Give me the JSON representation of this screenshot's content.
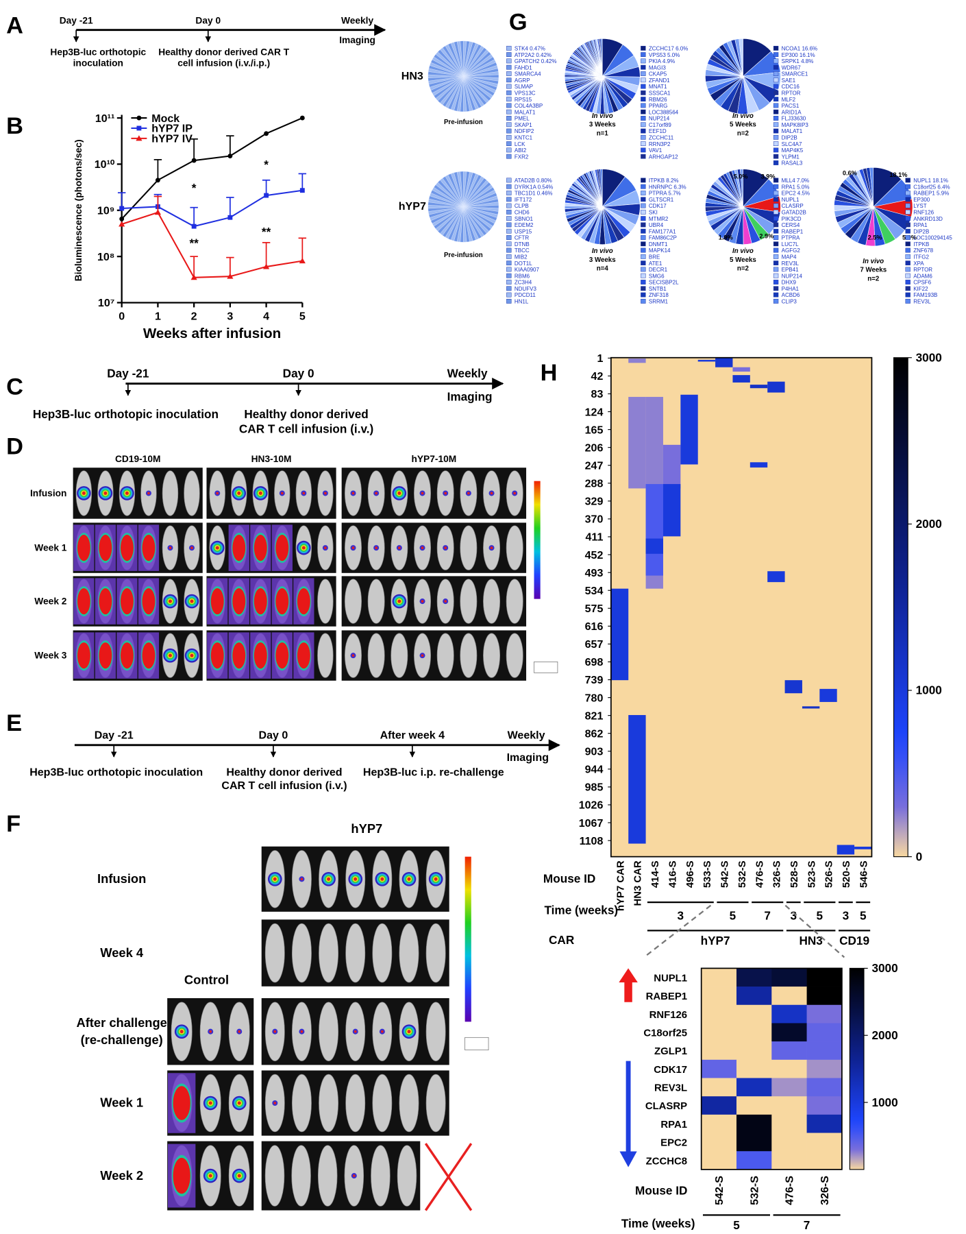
{
  "panel_A": {
    "letter": "A",
    "top_labels": [
      "Day -21",
      "Day 0",
      "Weekly"
    ],
    "imaging": "Imaging",
    "bottom_labels": [
      [
        "Hep3B-luc orthotopic",
        "inoculation"
      ],
      [
        "Healthy donor derived CAR T",
        "cell infusion (i.v./i.p.)"
      ]
    ]
  },
  "panel_B": {
    "letter": "B"
  },
  "panel_C": {
    "letter": "C",
    "top_labels": [
      "Day -21",
      "Day 0",
      "Weekly"
    ],
    "imaging": "Imaging",
    "bottom_labels": [
      [
        "Hep3B-luc orthotopic inoculation"
      ],
      [
        "Healthy donor derived",
        "CAR T cell infusion (i.v.)"
      ]
    ]
  },
  "panel_D": {
    "letter": "D",
    "columns": [
      "CD19-10M",
      "HN3-10M",
      "hYP7-10M"
    ],
    "rows": [
      "Infusion",
      "Week 1",
      "Week 2",
      "Week 3"
    ]
  },
  "panel_E": {
    "letter": "E",
    "top_labels": [
      "Day -21",
      "Day 0",
      "After week 4",
      "Weekly"
    ],
    "imaging": "Imaging",
    "bottom_labels": [
      [
        "Hep3B-luc orthotopic inoculation"
      ],
      [
        "Healthy donor derived",
        "CAR T cell infusion (i.v.)"
      ],
      [
        "Hep3B-luc i.p. re-challenge"
      ]
    ]
  },
  "panel_F": {
    "letter": "F",
    "group": "hYP7",
    "control": "Control",
    "rows": [
      [
        "Infusion"
      ],
      [
        "Week 4"
      ],
      [
        "After challenge",
        "(re-challenge)"
      ],
      [
        "Week 1"
      ],
      [
        "Week 2"
      ]
    ]
  },
  "panel_G": {
    "letter": "G",
    "groups": [
      {
        "name": "HN3",
        "pies": [
          {
            "caption": [
              "Pre-infusion"
            ],
            "genes": [
              "STK4 0.47%",
              "ATP2A2 0.42%",
              "GPATCH2 0.42%",
              "FAHD1",
              "SMARCA4",
              "AGRP",
              "SLMAP",
              "VPS13C",
              "RPS15",
              "COL4A3BP",
              "MALAT1",
              "PMEL",
              "SKAP1",
              "NDFIP2",
              "KNTC1",
              "LCK",
              "ABI2",
              "FXR2"
            ]
          },
          {
            "caption": [
              "In vivo",
              "3 Weeks",
              "n=1"
            ],
            "genes": [
              "ZCCHC17 6.0%",
              "VPS53 5.0%",
              "PKIA 4.9%",
              "MAGI3",
              "CKAP5",
              "ZFAND1",
              "MNAT1",
              "SSSCA1",
              "RBM26",
              "PPARG",
              "LOC388564",
              "NUP214",
              "C17orf89",
              "EEF1D",
              "ZCCHC11",
              "RRN3P2",
              "VAV1",
              "ARHGAP12"
            ]
          },
          {
            "caption": [
              "In vivo",
              "5 Weeks",
              "n=2"
            ],
            "genes": [
              "NCOA1 16.6%",
              "EP300 16.1%",
              "SRPK1 4.8%",
              "WDR67",
              "SMARCE1",
              "SAE1",
              "CDC16",
              "RPTOR",
              "MLF2",
              "PACS1",
              "ARID1A",
              "FLJ33630",
              "MAPK8IP3",
              "MALAT1",
              "DIP2B",
              "SLC4A7",
              "MAP4K5",
              "YLPM1",
              "RASAL3"
            ]
          }
        ]
      },
      {
        "name": "hYP7",
        "pies": [
          {
            "caption": [
              "Pre-infusion"
            ],
            "genes": [
              "ATAD2B 0.80%",
              "DYRK1A 0.54%",
              "TBC1D1 0.46%",
              "IFT172",
              "CLPB",
              "CHD6",
              "SBNO1",
              "EDEM2",
              "USP15",
              "CFTR",
              "DTNB",
              "TBCC",
              "MIB2",
              "DOT1L",
              "KIAA0907",
              "RBM6",
              "ZC3H4",
              "NDUFV3",
              "PDCD11",
              "HN1L"
            ]
          },
          {
            "caption": [
              "In vivo",
              "3 Weeks",
              "n=4"
            ],
            "genes": [
              "ITPKB 8.2%",
              "HNRNPC 6.3%",
              "PTPRA 5.7%",
              "GLTSCR1",
              "CDK17",
              "SKI",
              "MTMR2",
              "UBR4",
              "FAM177A1",
              "FAM86C2P",
              "DNMT1",
              "MAPK14",
              "BRE",
              "ATE1",
              "DECR1",
              "SMG6",
              "SECISBP2L",
              "SNTB1",
              "ZNF318",
              "SRRM1"
            ]
          },
          {
            "caption": [
              "In vivo",
              "5 Weeks",
              "n=2"
            ],
            "slice_labels": [
              "5.0%",
              "3.9%",
              "1.9%",
              "2.9%"
            ],
            "genes": [
              "MLL4 7.0%",
              "RPA1 5.0%",
              "EPC2 4.5%",
              "NUPL1",
              "CLASRP",
              "GATAD2B",
              "PIK3CD",
              "CERS4",
              "RABEP1",
              "PTPRA",
              "LUC7L",
              "AGFG2",
              "MAP4",
              "REV3L",
              "EPB41",
              "NUP214",
              "DHX9",
              "P4HA1",
              "ACBD6",
              "CLIP3"
            ]
          },
          {
            "caption": [
              "In vivo",
              "7 Weeks",
              "n=2"
            ],
            "slice_labels": [
              "0.6%",
              "18.1%",
              "2.5%",
              "5.9%"
            ],
            "genes": [
              "NUPL1 18.1%",
              "C18orf25 6.4%",
              "RABEP1 5.9%",
              "EP300",
              "LYST",
              "RNF126",
              "ANKRD13D",
              "RPA1",
              "DIP2B",
              "LOC100294145",
              "ITPKB",
              "ZNF678",
              "ITFG2",
              "XPA",
              "RPTOR",
              "ADAM6",
              "CPSF6",
              "KIF22",
              "FAM193B",
              "REV3L"
            ]
          }
        ]
      }
    ]
  },
  "panel_H": {
    "letter": "H"
  },
  "chart_data": [
    {
      "type": "line",
      "xlabel": "Weeks after infusion",
      "ylabel": "Bioluminescence (photons/sec)",
      "x": [
        0,
        1,
        2,
        3,
        4,
        5
      ],
      "xlim": [
        0,
        5
      ],
      "xticks": [
        0,
        1,
        2,
        3,
        4,
        5
      ],
      "ylim": [
        10000000,
        100000000000
      ],
      "log_y": true,
      "yticks": [
        {
          "value": 10000000,
          "label": "10⁷"
        },
        {
          "value": 100000000,
          "label": "10⁸"
        },
        {
          "value": 1000000000,
          "label": "10⁹"
        },
        {
          "value": 10000000000,
          "label": "10¹⁰"
        },
        {
          "value": 100000000000,
          "label": "10¹¹"
        }
      ],
      "legend": "upper left",
      "series": [
        {
          "name": "Mock",
          "color": "#000000",
          "values": [
            650000000,
            4500000000,
            12000000000,
            15000000000,
            46000000000,
            100000000000
          ],
          "errors": [
            null,
            8000000000,
            23000000000,
            26000000000,
            null,
            null
          ]
        },
        {
          "name": "hYP7 IP",
          "color": "#1f2fe0",
          "values": [
            1100000000,
            1200000000,
            450000000,
            700000000,
            2100000000,
            2700000000
          ],
          "errors": [
            1300000000,
            1000000000,
            700000000,
            1200000000,
            2400000000,
            3500000000
          ]
        },
        {
          "name": "hYP7 IV",
          "color": "#e81818",
          "values": [
            500000000,
            900000000,
            35000000,
            37000000,
            60000000,
            80000000
          ],
          "errors": [
            null,
            1100000000,
            65000000,
            58000000,
            140000000,
            170000000
          ]
        }
      ],
      "annotations": [
        {
          "text": "*",
          "x": 2,
          "y": 2500000000
        },
        {
          "text": "**",
          "x": 2,
          "y": 160000000
        },
        {
          "text": "*",
          "x": 4,
          "y": 8000000000
        },
        {
          "text": "**",
          "x": 4,
          "y": 280000000
        }
      ]
    },
    {
      "type": "heatmap",
      "xlabel": "Mouse ID",
      "time_label": "Time (weeks)",
      "car_label": "CAR",
      "categories": [
        "hYP7 CAR",
        "HN3 CAR",
        "414-S",
        "416-S",
        "496-S",
        "533-S",
        "542-S",
        "532-S",
        "476-S",
        "326-S",
        "528-S",
        "523-S",
        "526-S",
        "520-S",
        "546-S"
      ],
      "ylim": [
        0,
        1145
      ],
      "yticks": [
        1,
        42,
        83,
        124,
        165,
        206,
        247,
        288,
        329,
        370,
        411,
        452,
        493,
        534,
        575,
        616,
        657,
        698,
        739,
        780,
        821,
        862,
        903,
        944,
        985,
        1026,
        1067,
        1108
      ],
      "clim": [
        0,
        3000
      ],
      "cticks": [
        0,
        1000,
        2000,
        3000
      ],
      "blocks": [
        {
          "x": 0,
          "y": [
            530,
            740
          ],
          "value": 1000
        },
        {
          "x": 1,
          "y": [
            2,
            12
          ],
          "value": 250
        },
        {
          "x": 1,
          "y": [
            90,
            300
          ],
          "value": 250
        },
        {
          "x": 1,
          "y": [
            820,
            1115
          ],
          "value": 1000
        },
        {
          "x": 2,
          "y": [
            90,
            530
          ],
          "value": 250
        },
        {
          "x": 2,
          "y": [
            290,
            500
          ],
          "value": 500
        },
        {
          "x": 2,
          "y": [
            415,
            450
          ],
          "value": 1000
        },
        {
          "x": 3,
          "y": [
            200,
            300
          ],
          "value": 300
        },
        {
          "x": 3,
          "y": [
            290,
            410
          ],
          "value": 1000
        },
        {
          "x": 4,
          "y": [
            85,
            245
          ],
          "value": 1000
        },
        {
          "x": 5,
          "y": [
            5,
            9
          ],
          "value": 1000
        },
        {
          "x": 6,
          "y": [
            1,
            22
          ],
          "value": 1100
        },
        {
          "x": 7,
          "y": [
            22,
            32
          ],
          "value": 300
        },
        {
          "x": 7,
          "y": [
            40,
            57
          ],
          "value": 1100
        },
        {
          "x": 8,
          "y": [
            62,
            70
          ],
          "value": 1200
        },
        {
          "x": 8,
          "y": [
            240,
            252
          ],
          "value": 1000
        },
        {
          "x": 9,
          "y": [
            55,
            80
          ],
          "value": 1100
        },
        {
          "x": 9,
          "y": [
            490,
            515
          ],
          "value": 1000
        },
        {
          "x": 10,
          "y": [
            740,
            770
          ],
          "value": 1100
        },
        {
          "x": 11,
          "y": [
            800,
            805
          ],
          "value": 1200
        },
        {
          "x": 12,
          "y": [
            760,
            790
          ],
          "value": 1000
        },
        {
          "x": 13,
          "y": [
            1118,
            1140
          ],
          "value": 1000
        },
        {
          "x": 14,
          "y": [
            1122,
            1128
          ],
          "value": 1000
        }
      ],
      "time_groups": [
        {
          "label": "3",
          "span": [
            2,
            5
          ]
        },
        {
          "label": "5",
          "span": [
            6,
            7
          ]
        },
        {
          "label": "7",
          "span": [
            8,
            9
          ]
        },
        {
          "label": "3",
          "span": [
            10,
            10
          ]
        },
        {
          "label": "5",
          "span": [
            11,
            12
          ]
        },
        {
          "label": "3",
          "span": [
            13,
            13
          ]
        },
        {
          "label": "5",
          "span": [
            14,
            14
          ]
        }
      ],
      "car_groups": [
        {
          "label": "hYP7",
          "span": [
            2,
            9
          ]
        },
        {
          "label": "HN3",
          "span": [
            10,
            12
          ]
        },
        {
          "label": "CD19",
          "span": [
            13,
            14
          ]
        }
      ]
    },
    {
      "type": "heatmap",
      "xlabel": "Mouse ID",
      "time_label": "Time (weeks)",
      "categories": [
        "542-S",
        "532-S",
        "476-S",
        "326-S"
      ],
      "rows": [
        "NUPL1",
        "RABEP1",
        "RNF126",
        "C18orf25",
        "ZGLP1",
        "CDK17",
        "REV3L",
        "CLASRP",
        "RPA1",
        "EPC2",
        "ZCCHC8"
      ],
      "row_colors": [
        "#ee1c1c",
        "#ee1c1c",
        "#000000",
        "#000000",
        "#000000",
        "#1f3fe0",
        "#1f3fe0",
        "#1f3fe0",
        "#1f3fe0",
        "#1f3fe0",
        "#1f3fe0"
      ],
      "values": [
        [
          0,
          2300,
          2500,
          3000
        ],
        [
          0,
          1500,
          0,
          3000
        ],
        [
          0,
          0,
          1200,
          300
        ],
        [
          0,
          0,
          2600,
          400
        ],
        [
          0,
          0,
          400,
          400
        ],
        [
          400,
          0,
          0,
          200
        ],
        [
          0,
          1300,
          200,
          400
        ],
        [
          1500,
          0,
          0,
          300
        ],
        [
          0,
          2800,
          0,
          1400
        ],
        [
          0,
          2800,
          0,
          0
        ],
        [
          0,
          500,
          0,
          0
        ]
      ],
      "clim": [
        0,
        3000
      ],
      "cticks": [
        1000,
        2000,
        3000
      ],
      "time_groups": [
        {
          "label": "5",
          "span": [
            0,
            1
          ]
        },
        {
          "label": "7",
          "span": [
            2,
            3
          ]
        }
      ]
    }
  ]
}
